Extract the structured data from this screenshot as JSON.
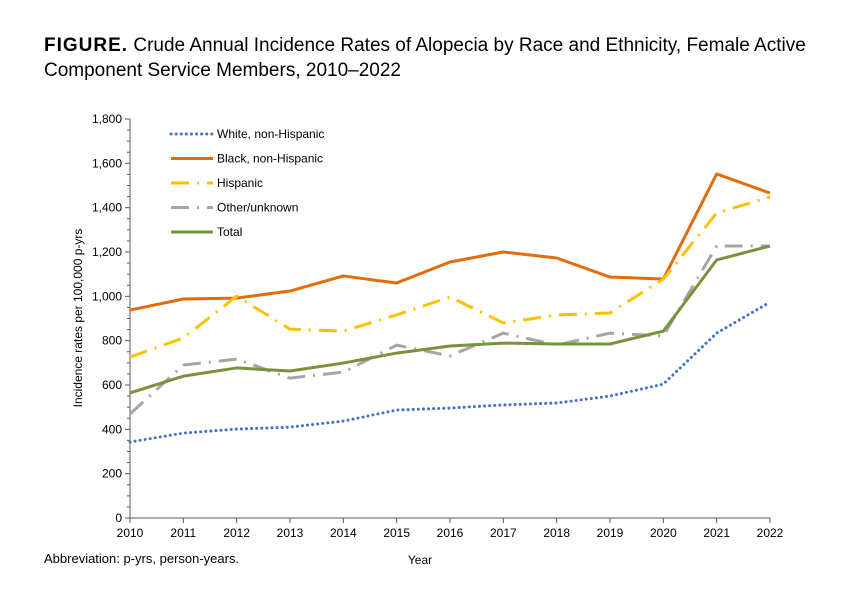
{
  "figure_label": "FIGURE.",
  "title": "Crude Annual Incidence Rates of Alopecia by Race and Ethnicity, Female Active Component Service Members, 2010–2022",
  "note": "Abbreviation: p-yrs, person-years.",
  "chart_data": {
    "type": "line",
    "xlabel": "Year",
    "ylabel": "Incidence rates per 100,000 p-yrs",
    "x": [
      2010,
      2011,
      2012,
      2013,
      2014,
      2015,
      2016,
      2017,
      2018,
      2019,
      2020,
      2021,
      2022
    ],
    "ylim": [
      0,
      1800
    ],
    "yticks": [
      0,
      200,
      400,
      600,
      800,
      1000,
      1200,
      1400,
      1600,
      1800
    ],
    "ytick_labels": [
      "0",
      "200",
      "400",
      "600",
      "800",
      "1,000",
      "1,200",
      "1,400",
      "1,600",
      "1,800"
    ],
    "grid": false,
    "legend_placement": "top-left",
    "series": [
      {
        "name": "White, non-Hispanic",
        "color": "#4472C4",
        "style": "dotted",
        "values": [
          343,
          383,
          401,
          410,
          437,
          487,
          496,
          510,
          519,
          550,
          604,
          834,
          974
        ]
      },
      {
        "name": "Black, non-Hispanic",
        "color": "#E36C0A",
        "style": "solid",
        "values": [
          938,
          988,
          992,
          1024,
          1092,
          1060,
          1155,
          1200,
          1173,
          1087,
          1078,
          1552,
          1466
        ]
      },
      {
        "name": "Hispanic",
        "color": "#FFC000",
        "style": "dash-dot",
        "values": [
          726,
          812,
          1001,
          852,
          843,
          916,
          997,
          880,
          916,
          925,
          1078,
          1376,
          1448
        ]
      },
      {
        "name": "Other/unknown",
        "color": "#A5A5A5",
        "style": "long-dash-dot",
        "values": [
          469,
          690,
          717,
          631,
          658,
          780,
          731,
          834,
          780,
          834,
          821,
          1227,
          1227
        ]
      },
      {
        "name": "Total",
        "color": "#77933C",
        "style": "solid",
        "values": [
          564,
          640,
          677,
          663,
          699,
          744,
          776,
          789,
          785,
          785,
          843,
          1164,
          1227
        ]
      }
    ]
  }
}
